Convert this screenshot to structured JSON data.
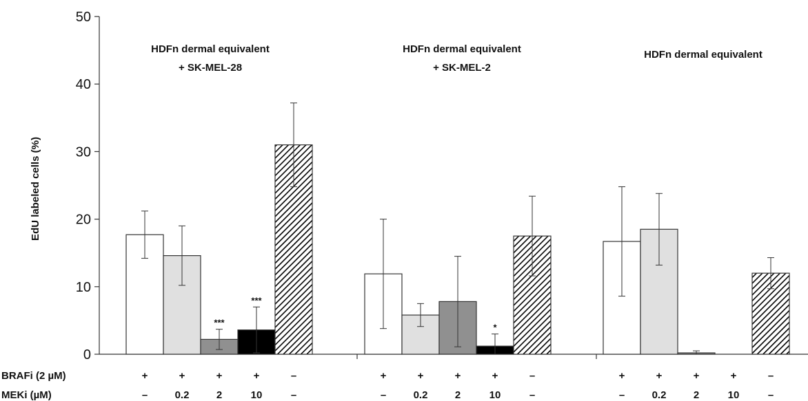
{
  "chart_data": {
    "type": "bar",
    "ylabel": "EdU labeled cells (%)",
    "ylim": [
      0,
      50
    ],
    "yticks": [
      "0",
      "10",
      "20",
      "30",
      "40",
      "50"
    ],
    "grid": false,
    "legend": "none",
    "condition_rows": [
      {
        "label": "BRAFi (2 µM)",
        "values": [
          "+",
          "+",
          "+",
          "+",
          "–"
        ]
      },
      {
        "label": "MEKi  (µM)",
        "values": [
          "–",
          "0.2",
          "2",
          "10",
          "–"
        ]
      }
    ],
    "fills": [
      "#ffffff",
      "#e0e0e0",
      "#909090",
      "#000000",
      "hatch"
    ],
    "groups": [
      {
        "title_lines": [
          "HDFn dermal equivalent",
          "+ SK-MEL-28"
        ],
        "values": [
          17.7,
          14.6,
          2.2,
          3.6,
          31.0
        ],
        "errors": [
          3.5,
          4.4,
          1.5,
          3.4,
          6.2
        ],
        "annotations": [
          "",
          "",
          "***",
          "***",
          ""
        ]
      },
      {
        "title_lines": [
          "HDFn dermal equivalent",
          "+ SK-MEL-2"
        ],
        "values": [
          11.9,
          5.8,
          7.8,
          1.2,
          17.5
        ],
        "errors": [
          8.1,
          1.7,
          6.7,
          1.8,
          5.9
        ],
        "annotations": [
          "",
          "",
          "",
          "*",
          ""
        ]
      },
      {
        "title_lines": [
          "HDFn dermal equivalent"
        ],
        "values": [
          16.7,
          18.5,
          0.2,
          0,
          12.0
        ],
        "errors": [
          8.1,
          5.3,
          0.3,
          0,
          2.3
        ],
        "annotations": [
          "",
          "",
          "",
          "",
          ""
        ]
      }
    ]
  }
}
